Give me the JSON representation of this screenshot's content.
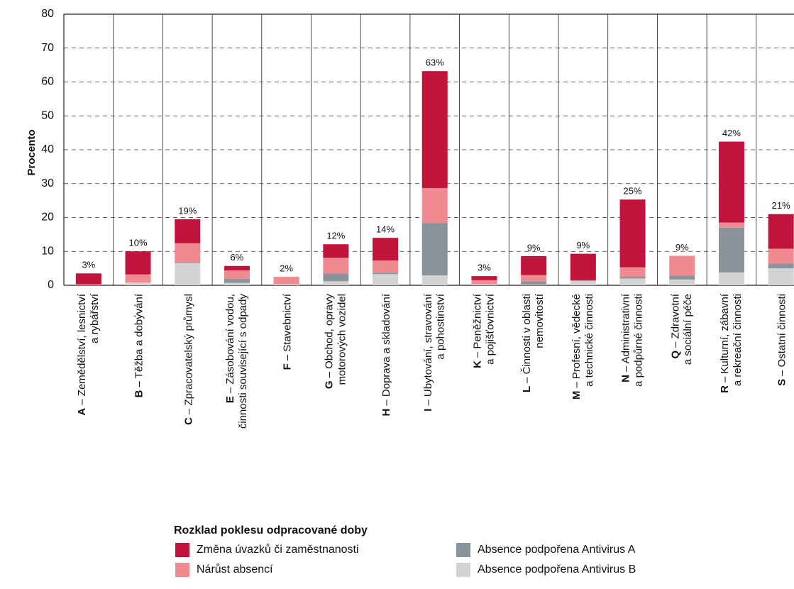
{
  "chart_data": {
    "type": "stacked_bar",
    "ylabel": "Procento",
    "legend_title": "Rozklad poklesu odpracované doby",
    "ylim": [
      0,
      80
    ],
    "yticks": [
      0,
      10,
      20,
      30,
      40,
      50,
      60,
      70,
      80
    ],
    "grid": true,
    "categories": [
      {
        "code": "A",
        "lines": [
          "– Zemědělství, lesnictví",
          "a rybářství"
        ]
      },
      {
        "code": "B",
        "lines": [
          "– Těžba a dobývání"
        ]
      },
      {
        "code": "C",
        "lines": [
          "– Zpracovatelský průmysl"
        ]
      },
      {
        "code": "E",
        "lines": [
          "– Zásobování vodou,",
          "činnosti související s odpady"
        ]
      },
      {
        "code": "F",
        "lines": [
          "– Stavebnictví"
        ]
      },
      {
        "code": "G",
        "lines": [
          "– Obchod, opravy",
          "motorových vozidel"
        ]
      },
      {
        "code": "H",
        "lines": [
          "– Doprava a skladování"
        ]
      },
      {
        "code": "I",
        "lines": [
          "– Ubytování, stravování",
          "a pohostinství"
        ]
      },
      {
        "code": "K",
        "lines": [
          "– Peněžnictví",
          "a pojišťovnictví"
        ]
      },
      {
        "code": "L",
        "lines": [
          "– Činnosti v oblasti",
          "nemovitostí"
        ]
      },
      {
        "code": "M",
        "lines": [
          "– Profesní, vědecké",
          "a technické činnosti"
        ]
      },
      {
        "code": "N",
        "lines": [
          "– Administrativní",
          "a podpůrné činnosti"
        ]
      },
      {
        "code": "Q",
        "lines": [
          "– Zdravotní",
          "a sociální péče"
        ]
      },
      {
        "code": "R",
        "lines": [
          "– Kulturní, zábavní",
          "a rekreační činnosti"
        ]
      },
      {
        "code": "S",
        "lines": [
          "– Ostatní činnosti"
        ]
      }
    ],
    "series": [
      {
        "name": "Změna úvazků či zaměstnanosti",
        "color": "#c0143c",
        "values": [
          3.2,
          6.8,
          7.1,
          1.3,
          0,
          4.0,
          6.7,
          34.5,
          1.2,
          5.6,
          7.8,
          20.0,
          0,
          23.9,
          10.2
        ]
      },
      {
        "name": "Nárůst absencí",
        "color": "#f08a90",
        "values": [
          0.3,
          2.4,
          5.6,
          2.5,
          2.2,
          4.6,
          3.6,
          10.3,
          1.2,
          1.8,
          0,
          2.8,
          5.8,
          1.5,
          4.4
        ]
      },
      {
        "name": "Absence podpořena Antivirus A",
        "color": "#8a9399",
        "values": [
          0,
          0,
          0.2,
          1.2,
          0,
          2.3,
          0.4,
          15.5,
          0,
          1.0,
          0.2,
          0.5,
          1.2,
          13.2,
          1.4
        ]
      },
      {
        "name": "Absence podpořena Antivirus B",
        "color": "#d3d3d3",
        "values": [
          0,
          0.8,
          6.6,
          0.7,
          0.3,
          1.2,
          3.3,
          2.9,
          0.3,
          0.2,
          1.3,
          2.0,
          1.7,
          3.8,
          5.0
        ]
      }
    ],
    "total_labels": [
      "3%",
      "10%",
      "19%",
      "6%",
      "2%",
      "12%",
      "14%",
      "63%",
      "3%",
      "9%",
      "9%",
      "25%",
      "9%",
      "42%",
      "21%"
    ]
  }
}
